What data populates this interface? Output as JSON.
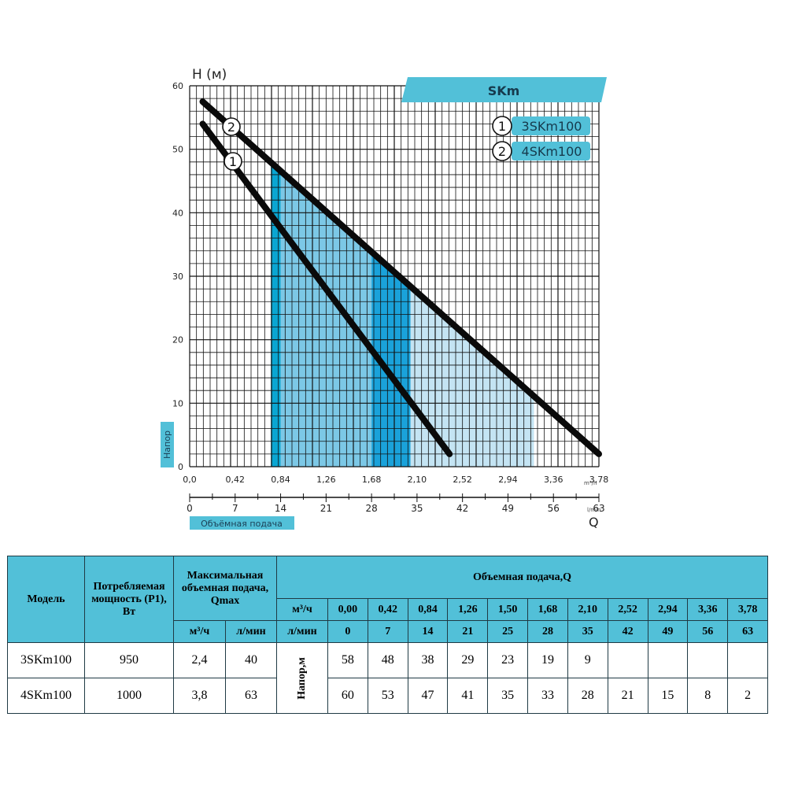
{
  "chart_data": {
    "type": "line",
    "title": "SKm",
    "ylabel": "H (м)",
    "ylabel_side": "Напор",
    "xlabel": "Q",
    "xlabel_side": "Объёмная подача",
    "x_unit_m3h": "m³/h",
    "x_unit_lmin": "l/min",
    "ylim": [
      0,
      60
    ],
    "y_ticks": [
      "0",
      "10",
      "20",
      "30",
      "40",
      "50",
      "60"
    ],
    "x_ticks_m3h": [
      "0,0",
      "0,42",
      "0,84",
      "1,26",
      "1,68",
      "2,10",
      "2,52",
      "2,94",
      "3,36",
      "3,78"
    ],
    "x_ticks_lmin": [
      "0",
      "7",
      "14",
      "21",
      "28",
      "35",
      "42",
      "49",
      "56",
      "63"
    ],
    "grid": true,
    "legend_position": "top-right",
    "series": [
      {
        "marker": "1",
        "name": "3SKm100",
        "x_lmin": [
          2,
          40
        ],
        "y": [
          54,
          2
        ]
      },
      {
        "marker": "2",
        "name": "4SKm100",
        "x_lmin": [
          2,
          63
        ],
        "y": [
          57.5,
          2
        ]
      }
    ],
    "shaded_regions": [
      {
        "x_lmin_start": 12.5,
        "x_lmin_end": 14,
        "color": "#0aa6d2"
      },
      {
        "x_lmin_start": 14,
        "x_lmin_end": 28,
        "color": "#7cc8e6"
      },
      {
        "x_lmin_start": 28,
        "x_lmin_end": 34,
        "color": "#1aa2da"
      },
      {
        "x_lmin_start": 34,
        "x_lmin_end": 53,
        "color": "#c4e4f3"
      }
    ]
  },
  "table": {
    "header_model": "Модель",
    "header_power": "Потребляемая мощность (P1), Вт",
    "header_qmax": "Максимальная объемная подача, Qmax",
    "header_flow": "Объемная подача,Q",
    "unit_m3h": "м³/ч",
    "unit_lmin": "л/мин",
    "head_label": "Напор,м",
    "flow_m3h": [
      "0,00",
      "0,42",
      "0,84",
      "1,26",
      "1,50",
      "1,68",
      "2,10",
      "2,52",
      "2,94",
      "3,36",
      "3,78"
    ],
    "flow_lmin": [
      "0",
      "7",
      "14",
      "21",
      "25",
      "28",
      "35",
      "42",
      "49",
      "56",
      "63"
    ],
    "rows": [
      {
        "model": "3SKm100",
        "power": "950",
        "qmax_m3h": "2,4",
        "qmax_lmin": "40",
        "heads": [
          "58",
          "48",
          "38",
          "29",
          "23",
          "19",
          "9",
          "",
          "",
          "",
          ""
        ]
      },
      {
        "model": "4SKm100",
        "power": "1000",
        "qmax_m3h": "3,8",
        "qmax_lmin": "63",
        "heads": [
          "60",
          "53",
          "47",
          "41",
          "35",
          "33",
          "28",
          "21",
          "15",
          "8",
          "2"
        ]
      }
    ]
  }
}
